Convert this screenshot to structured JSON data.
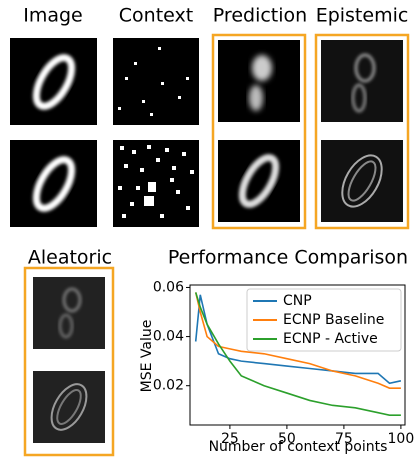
{
  "panels": [
    {
      "label": "Image"
    },
    {
      "label": "Context"
    },
    {
      "label": "Prediction"
    },
    {
      "label": "Epistemic"
    },
    {
      "label": "Aleatoric"
    }
  ],
  "chart_data": {
    "type": "line",
    "title": "Performance Comparison",
    "x_label": "Number of context points",
    "y_label": "MSE Value",
    "x": [
      10,
      12,
      15,
      20,
      25,
      30,
      40,
      50,
      60,
      70,
      80,
      90,
      95,
      100
    ],
    "series": [
      {
        "name": "CNP",
        "color": "#1f77b4",
        "values": [
          0.038,
          0.057,
          0.045,
          0.033,
          0.031,
          0.03,
          0.029,
          0.028,
          0.027,
          0.026,
          0.025,
          0.025,
          0.021,
          0.022
        ]
      },
      {
        "name": "ECNP Baseline",
        "color": "#ff7f0e",
        "values": [
          0.058,
          0.05,
          0.04,
          0.036,
          0.035,
          0.034,
          0.033,
          0.031,
          0.029,
          0.026,
          0.024,
          0.021,
          0.019,
          0.019
        ]
      },
      {
        "name": "ECNP - Active",
        "color": "#2ca02c",
        "values": [
          0.058,
          0.052,
          0.045,
          0.037,
          0.03,
          0.024,
          0.02,
          0.017,
          0.014,
          0.012,
          0.011,
          0.009,
          0.008,
          0.008
        ]
      }
    ],
    "xlim": [
      7.5,
      101.8
    ],
    "ylim": [
      0.004,
      0.061
    ],
    "xticks": [
      25,
      50,
      75,
      100
    ],
    "yticks": [
      0.02,
      0.04,
      0.06
    ],
    "legend": "upper right"
  }
}
